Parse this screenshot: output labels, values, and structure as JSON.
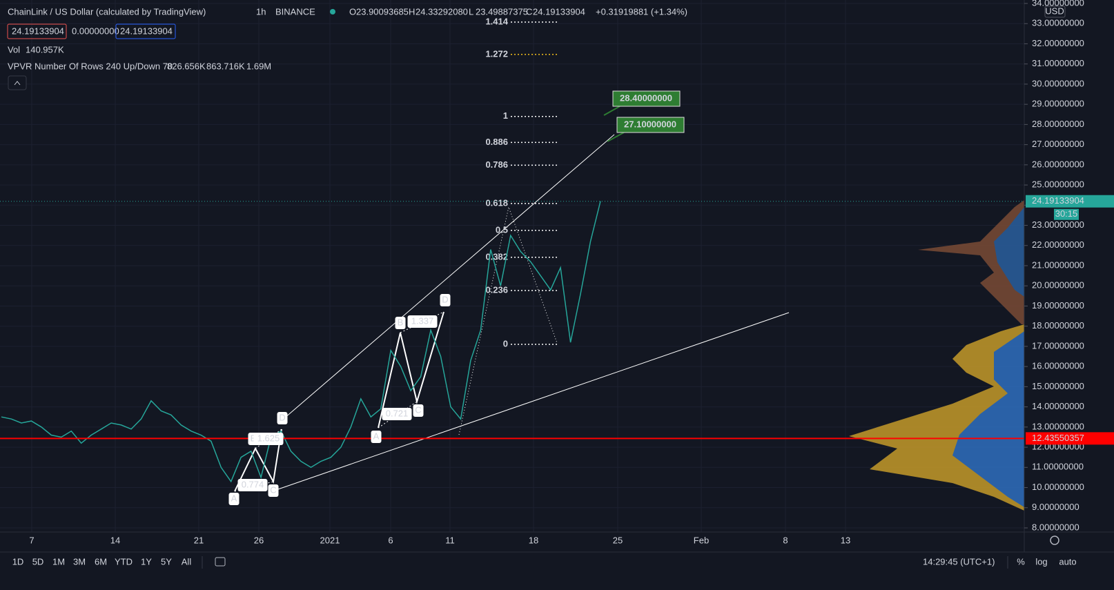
{
  "header": {
    "symbol": "ChainLink / US Dollar (calculated by TradingView)",
    "interval": "1h",
    "exchange": "BINANCE",
    "ohlc": [
      {
        "key": "O",
        "value": "23.90093685"
      },
      {
        "key": "H",
        "value": "24.33292080"
      },
      {
        "key": "L",
        "value": "23.49887375"
      },
      {
        "key": "C",
        "value": "24.19133904"
      }
    ],
    "change": "+0.31919881 (+1.34%)",
    "sell": "24.19133904",
    "spread": "0.00000000",
    "buy": "24.19133904"
  },
  "indicators": {
    "vol_label": "Vol",
    "vol_value": "140.957K",
    "vpvr_label": "VPVR Number Of Rows 240 Up/Down 70",
    "vpvr_up": "826.656K",
    "vpvr_down": "863.716K",
    "vpvr_total": "1.69M"
  },
  "price_axis": {
    "currency": "USD",
    "ylim": [
      8,
      34
    ],
    "ticks": [
      {
        "value": 8,
        "label": "8.00000000"
      },
      {
        "value": 9,
        "label": "9.00000000"
      },
      {
        "value": 10,
        "label": "10.00000000"
      },
      {
        "value": 11,
        "label": "11.00000000"
      },
      {
        "value": 12,
        "label": "12.00000000"
      },
      {
        "value": 13,
        "label": "13.00000000"
      },
      {
        "value": 14,
        "label": "14.00000000"
      },
      {
        "value": 15,
        "label": "15.00000000"
      },
      {
        "value": 16,
        "label": "16.00000000"
      },
      {
        "value": 17,
        "label": "17.00000000"
      },
      {
        "value": 18,
        "label": "18.00000000"
      },
      {
        "value": 19,
        "label": "19.00000000"
      },
      {
        "value": 20,
        "label": "20.00000000"
      },
      {
        "value": 21,
        "label": "21.00000000"
      },
      {
        "value": 22,
        "label": "22.00000000"
      },
      {
        "value": 23,
        "label": "23.00000000"
      },
      {
        "value": 24,
        "label": "24.00000000"
      },
      {
        "value": 25,
        "label": "25.00000000"
      },
      {
        "value": 26,
        "label": "26.00000000"
      },
      {
        "value": 27,
        "label": "27.00000000"
      },
      {
        "value": 28,
        "label": "28.00000000"
      },
      {
        "value": 29,
        "label": "29.00000000"
      },
      {
        "value": 30,
        "label": "30.00000000"
      },
      {
        "value": 31,
        "label": "31.00000000"
      },
      {
        "value": 32,
        "label": "32.00000000"
      },
      {
        "value": 33,
        "label": "33.00000000"
      },
      {
        "value": 34,
        "label": "34.00000000"
      }
    ],
    "last_price": {
      "value": 24.19133904,
      "label": "24.19133904"
    },
    "countdown": "30:15",
    "horizontal_line": {
      "value": 12.43550357,
      "label": "12.43550357"
    }
  },
  "price_path": [
    13.5,
    13.4,
    13.2,
    13.3,
    13.0,
    12.6,
    12.5,
    12.8,
    12.2,
    12.6,
    12.9,
    13.2,
    13.1,
    12.9,
    13.4,
    14.3,
    13.8,
    13.6,
    13.1,
    12.8,
    12.6,
    12.3,
    11.0,
    10.3,
    11.5,
    11.8,
    10.5,
    12.5,
    12.8,
    11.8,
    11.3,
    11.0,
    11.3,
    11.5,
    12.0,
    13.0,
    14.4,
    13.5,
    13.9,
    16.8,
    16.0,
    14.8,
    15.5,
    17.8,
    16.5,
    14.0,
    13.4,
    16.3,
    17.8,
    21.8,
    20.0,
    22.5,
    21.7,
    21.2,
    20.5,
    19.8,
    20.9,
    17.2,
    19.6,
    22.2,
    24.2
  ],
  "fib": {
    "anchor_0": 17.1,
    "anchor_1": 28.4,
    "levels": [
      1.414,
      1.272,
      1,
      0.886,
      0.786,
      0.618,
      0.5,
      0.382,
      0.236,
      0
    ],
    "colors": [
      "#ffffff",
      "#f7c21b",
      "#ffffff",
      "#ffffff",
      "#ffffff",
      "#ffffff",
      "#ffffff",
      "#ffffff",
      "#ffffff",
      "#ffffff"
    ]
  },
  "callouts": [
    "28.40000000",
    "27.10000000"
  ],
  "patterns": [
    {
      "points": [
        "A",
        "B",
        "C",
        "D"
      ],
      "ratios": [
        "0.774",
        "1.625"
      ]
    },
    {
      "points": [
        "A",
        "B",
        "C",
        "D"
      ],
      "ratios": [
        "0.721",
        "1.337"
      ]
    }
  ],
  "time_axis": [
    "7",
    "14",
    "21",
    "26",
    "2021",
    "6",
    "11",
    "18",
    "25",
    "Feb",
    "8",
    "13"
  ],
  "toolbar": {
    "ranges": [
      "1D",
      "5D",
      "1M",
      "3M",
      "6M",
      "YTD",
      "1Y",
      "5Y",
      "All"
    ],
    "clock": "14:29:45 (UTC+1)",
    "percent": "%",
    "log": "log",
    "auto": "auto"
  }
}
